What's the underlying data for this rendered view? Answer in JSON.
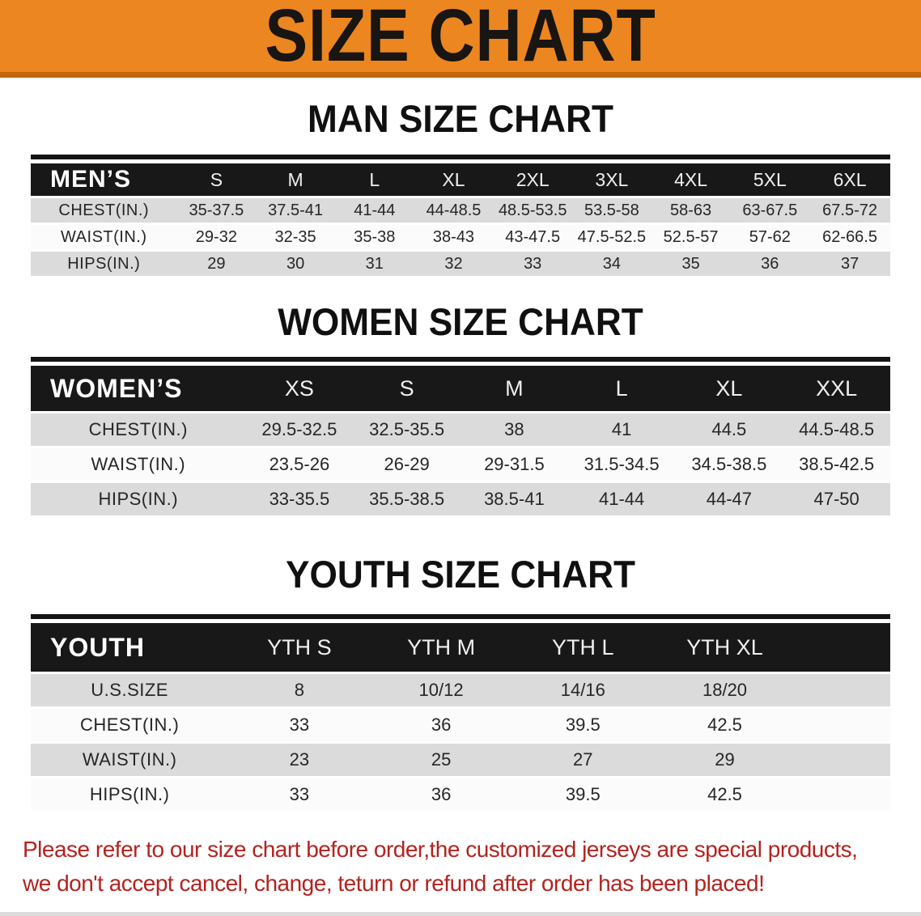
{
  "banner": {
    "title": "SIZE CHART"
  },
  "colors": {
    "banner_orange": "#EC8620",
    "banner_edge": "#C2660F",
    "header_band_black": "#181818",
    "stripe_gray": "#DBDBDB",
    "notice_red": "#B3231F"
  },
  "sections": [
    {
      "heading": "MAN SIZE CHART",
      "table": {
        "header_label": "MEN’S",
        "columns": [
          "S",
          "M",
          "L",
          "XL",
          "2XL",
          "3XL",
          "4XL",
          "5XL",
          "6XL"
        ],
        "rows": [
          {
            "label": "CHEST(IN.)",
            "values": [
              "35-37.5",
              "37.5-41",
              "41-44",
              "44-48.5",
              "48.5-53.5",
              "53.5-58",
              "58-63",
              "63-67.5",
              "67.5-72"
            ]
          },
          {
            "label": "WAIST(IN.)",
            "values": [
              "29-32",
              "32-35",
              "35-38",
              "38-43",
              "43-47.5",
              "47.5-52.5",
              "52.5-57",
              "57-62",
              "62-66.5"
            ]
          },
          {
            "label": "HIPS(IN.)",
            "values": [
              "29",
              "30",
              "31",
              "32",
              "33",
              "34",
              "35",
              "36",
              "37"
            ]
          }
        ]
      }
    },
    {
      "heading": "WOMEN SIZE CHART",
      "table": {
        "header_label": "WOMEN’S",
        "columns": [
          "XS",
          "S",
          "M",
          "L",
          "XL",
          "XXL"
        ],
        "rows": [
          {
            "label": "CHEST(IN.)",
            "values": [
              "29.5-32.5",
              "32.5-35.5",
              "38",
              "41",
              "44.5",
              "44.5-48.5"
            ]
          },
          {
            "label": "WAIST(IN.)",
            "values": [
              "23.5-26",
              "26-29",
              "29-31.5",
              "31.5-34.5",
              "34.5-38.5",
              "38.5-42.5"
            ]
          },
          {
            "label": "HIPS(IN.)",
            "values": [
              "33-35.5",
              "35.5-38.5",
              "38.5-41",
              "41-44",
              "44-47",
              "47-50"
            ]
          }
        ]
      }
    },
    {
      "heading": "YOUTH SIZE CHART",
      "table": {
        "header_label": "YOUTH",
        "columns": [
          "YTH S",
          "YTH M",
          "YTH L",
          "YTH XL"
        ],
        "rows": [
          {
            "label": "U.S.SIZE",
            "values": [
              "8",
              "10/12",
              "14/16",
              "18/20"
            ]
          },
          {
            "label": "CHEST(IN.)",
            "values": [
              "33",
              "36",
              "39.5",
              "42.5"
            ]
          },
          {
            "label": "WAIST(IN.)",
            "values": [
              "23",
              "25",
              "27",
              "29"
            ]
          },
          {
            "label": "HIPS(IN.)",
            "values": [
              "33",
              "36",
              "39.5",
              "42.5"
            ]
          }
        ]
      }
    }
  ],
  "footer": {
    "line1": "Please refer to our size chart before order,the customized jerseys are special products,",
    "line2": "we don't accept cancel, change, teturn or refund after order has been placed!"
  }
}
